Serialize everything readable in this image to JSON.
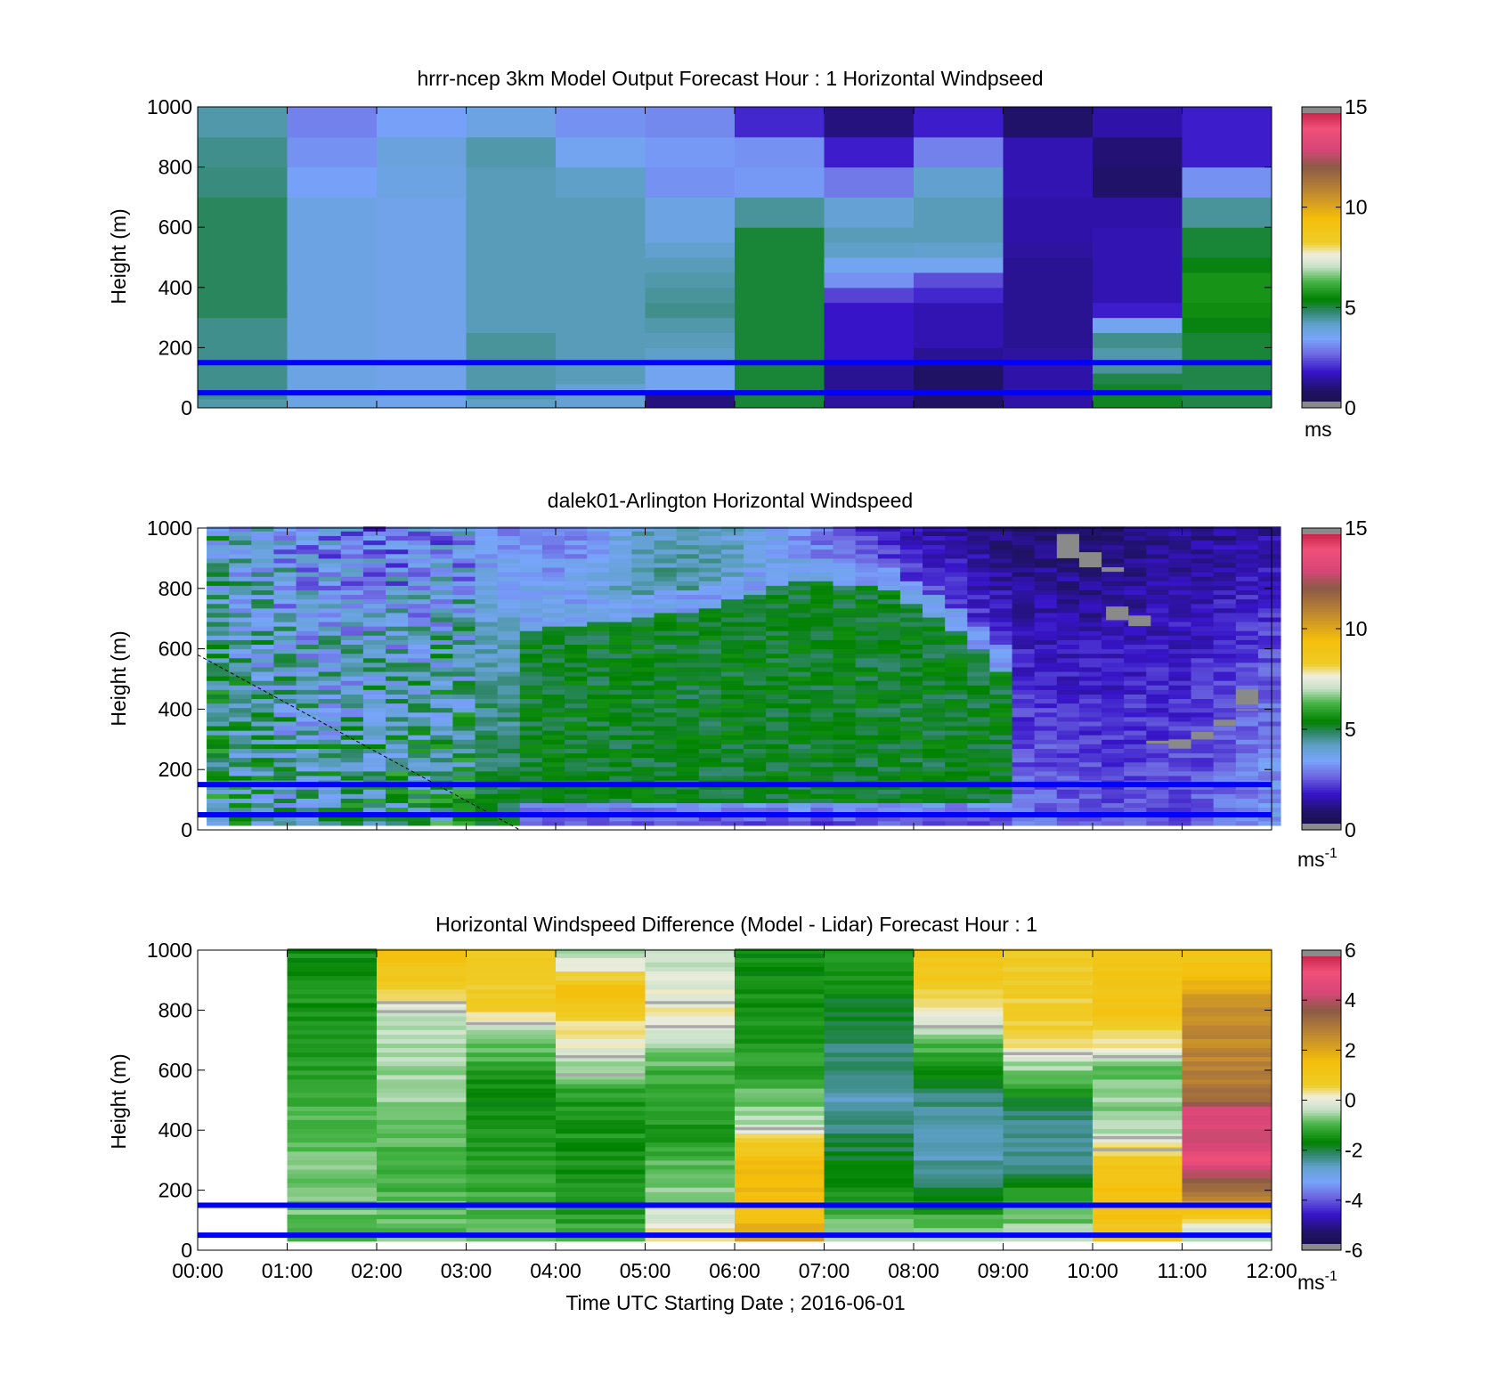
{
  "figure": {
    "x_ticks": [
      "00:00",
      "01:00",
      "02:00",
      "03:00",
      "04:00",
      "05:00",
      "06:00",
      "07:00",
      "08:00",
      "09:00",
      "10:00",
      "11:00",
      "12:00"
    ],
    "x_label": "Time UTC  Starting Date ; 2016-06-01",
    "ref_line_color": "#0000ff",
    "ref_line_heights_m": [
      50,
      150
    ]
  },
  "chart_data": [
    {
      "type": "heatmap",
      "title": "hrrr-ncep 3km Model Output   Forecast Hour : 1 Horizontal Windpseed",
      "ylabel": "Height (m)",
      "xlim_hours": [
        0,
        12
      ],
      "ylim": [
        0,
        1000
      ],
      "y_ticks": [
        "0",
        "200",
        "400",
        "600",
        "800",
        "1000"
      ],
      "colorbar": {
        "range": [
          0,
          15
        ],
        "ticks": [
          "0",
          "5",
          "10",
          "15"
        ],
        "unit": "ms",
        "unit_sup": ""
      },
      "model_levels_m": [
        0,
        30,
        50,
        80,
        115,
        155,
        200,
        250,
        300,
        350,
        400,
        450,
        500,
        550,
        600,
        700,
        800,
        900,
        1000
      ],
      "hours": [
        0,
        1,
        2,
        3,
        4,
        5,
        6,
        7,
        8,
        9,
        10,
        11
      ],
      "values": [
        [
          4.4,
          3.8,
          3.7,
          4.2,
          4.0,
          1.1,
          5.1,
          1.4,
          0.8,
          1.5,
          5.2,
          5.0
        ],
        [
          4.6,
          3.8,
          3.7,
          4.4,
          4.0,
          1.1,
          5.1,
          1.4,
          0.8,
          1.5,
          5.2,
          5.0
        ],
        [
          4.6,
          3.8,
          3.7,
          4.4,
          4.0,
          3.6,
          5.1,
          1.3,
          0.8,
          1.5,
          5.2,
          5.0
        ],
        [
          4.6,
          3.8,
          3.7,
          4.4,
          4.3,
          3.6,
          5.1,
          1.3,
          0.8,
          1.5,
          5.0,
          5.0
        ],
        [
          4.6,
          3.8,
          3.7,
          4.4,
          4.3,
          3.6,
          5.1,
          1.3,
          0.8,
          1.5,
          4.5,
          5.0
        ],
        [
          4.6,
          3.8,
          3.7,
          4.5,
          4.3,
          4.2,
          5.1,
          1.8,
          1.3,
          1.4,
          4.4,
          5.1
        ],
        [
          4.6,
          3.8,
          3.7,
          4.5,
          4.3,
          4.3,
          5.1,
          1.8,
          1.6,
          1.3,
          4.6,
          5.1
        ],
        [
          4.6,
          3.8,
          3.7,
          4.3,
          4.3,
          4.4,
          5.1,
          1.8,
          1.6,
          1.3,
          3.6,
          5.3
        ],
        [
          4.9,
          3.8,
          3.7,
          4.3,
          4.3,
          4.6,
          5.1,
          1.8,
          1.6,
          1.3,
          1.9,
          5.6
        ],
        [
          4.9,
          3.8,
          3.7,
          4.3,
          4.3,
          4.5,
          5.1,
          2.3,
          2.0,
          1.3,
          1.6,
          5.7
        ],
        [
          4.9,
          3.8,
          3.7,
          4.3,
          4.3,
          4.4,
          5.1,
          3.2,
          2.4,
          1.3,
          1.6,
          5.7
        ],
        [
          4.9,
          3.8,
          3.7,
          4.3,
          4.3,
          4.3,
          5.1,
          3.6,
          3.6,
          1.3,
          1.6,
          5.3
        ],
        [
          4.9,
          3.8,
          3.7,
          4.3,
          4.3,
          4.1,
          5.1,
          4.2,
          4.1,
          1.4,
          1.6,
          5.1
        ],
        [
          4.9,
          3.8,
          3.7,
          4.3,
          4.3,
          3.8,
          5.1,
          4.3,
          4.3,
          1.5,
          1.6,
          5.1
        ],
        [
          4.9,
          3.8,
          3.7,
          4.3,
          4.3,
          3.8,
          4.5,
          4.0,
          4.3,
          1.5,
          1.5,
          4.5
        ],
        [
          4.7,
          3.4,
          3.8,
          4.3,
          4.2,
          3.2,
          3.3,
          2.9,
          4.1,
          1.6,
          0.9,
          3.2
        ],
        [
          4.6,
          3.2,
          3.9,
          4.4,
          3.6,
          3.3,
          3.2,
          1.9,
          3.0,
          1.6,
          1.0,
          1.9
        ],
        [
          4.4,
          3.0,
          3.4,
          3.8,
          3.2,
          3.1,
          2.0,
          1.1,
          1.9,
          0.9,
          1.5,
          1.9
        ]
      ]
    },
    {
      "type": "heatmap",
      "title": "dalek01-Arlington  Horizontal Windspeed",
      "ylabel": "Height (m)",
      "xlim_hours": [
        0,
        12
      ],
      "ylim": [
        0,
        1000
      ],
      "y_ticks": [
        "0",
        "200",
        "400",
        "600",
        "800",
        "1000"
      ],
      "colorbar": {
        "range": [
          0,
          15
        ],
        "ticks": [
          "0",
          "5",
          "10",
          "15"
        ],
        "unit": "ms",
        "unit_sup": "-1"
      },
      "lidar_data_hours": [
        0.1,
        11.9
      ],
      "time_step_hours": 0.25,
      "level_step_m": 15,
      "field": [
        {
          "t": 0.0,
          "base": 5.0,
          "top": 4.4
        },
        {
          "t": 1.0,
          "base": 4.3,
          "top": 3.3
        },
        {
          "t": 2.0,
          "base": 5.1,
          "top": 2.6
        },
        {
          "t": 3.0,
          "base": 5.3,
          "top": 3.2
        },
        {
          "t": 4.0,
          "base": 5.1,
          "top": 2.8
        },
        {
          "t": 5.0,
          "base": 5.1,
          "top": 4.3
        },
        {
          "t": 6.0,
          "base": 5.0,
          "top": 3.9
        },
        {
          "t": 7.0,
          "base": 5.4,
          "top": 2.5
        },
        {
          "t": 8.0,
          "base": 5.1,
          "top": 1.4
        },
        {
          "t": 9.0,
          "base": 2.8,
          "top": 0.9
        },
        {
          "t": 10.0,
          "base": 2.5,
          "top": 0.8
        },
        {
          "t": 11.0,
          "base": 2.5,
          "top": 1.3
        },
        {
          "t": 12.0,
          "base": 3.5,
          "top": 1.4
        }
      ],
      "jet_core_top_m": [
        {
          "t": 3.5,
          "h": 650
        },
        {
          "t": 5.5,
          "h": 720
        },
        {
          "t": 6.5,
          "h": 820
        },
        {
          "t": 7.5,
          "h": 800
        },
        {
          "t": 8.5,
          "h": 620
        },
        {
          "t": 9.0,
          "h": 480
        }
      ],
      "missing_patches": [
        {
          "t0": 9.6,
          "t1": 9.85,
          "h0": 900,
          "h1": 980
        },
        {
          "t0": 9.85,
          "t1": 10.1,
          "h0": 870,
          "h1": 920
        },
        {
          "t0": 10.1,
          "t1": 10.35,
          "h0": 855,
          "h1": 870
        },
        {
          "t0": 10.15,
          "t1": 10.4,
          "h0": 695,
          "h1": 740
        },
        {
          "t0": 10.4,
          "t1": 10.65,
          "h0": 675,
          "h1": 710
        },
        {
          "t0": 10.6,
          "t1": 10.85,
          "h0": 285,
          "h1": 295
        },
        {
          "t0": 10.85,
          "t1": 11.1,
          "h0": 270,
          "h1": 300
        },
        {
          "t0": 11.1,
          "t1": 11.35,
          "h0": 300,
          "h1": 325
        },
        {
          "t0": 11.35,
          "t1": 11.6,
          "h0": 345,
          "h1": 365
        },
        {
          "t0": 11.6,
          "t1": 11.85,
          "h0": 415,
          "h1": 465
        },
        {
          "t0": 11.6,
          "t1": 11.85,
          "h0": 395,
          "h1": 400
        }
      ],
      "dashed_line": {
        "t0": 0.0,
        "h0": 580,
        "t1": 3.6,
        "h1": 0
      }
    },
    {
      "type": "heatmap",
      "title": "Horizontal Windspeed Difference (Model - Lidar) Forecast Hour : 1",
      "ylabel": "Height (m)",
      "xlim_hours": [
        0,
        12
      ],
      "ylim": [
        0,
        1000
      ],
      "y_ticks": [
        "0",
        "200",
        "400",
        "600",
        "800",
        "1000"
      ],
      "colorbar": {
        "range": [
          -6,
          6
        ],
        "ticks": [
          "-6",
          "-4",
          "-2",
          "0",
          "2",
          "4",
          "6"
        ],
        "unit": "ms",
        "unit_sup": "-1"
      },
      "hours": [
        1,
        2,
        3,
        4,
        5,
        6,
        7,
        8,
        9,
        10,
        11
      ],
      "level_step_m": 15,
      "level_range_m": [
        30,
        1000
      ],
      "profiles": [
        [
          {
            "h": 30,
            "v": -0.8
          },
          {
            "h": 300,
            "v": -0.8
          },
          {
            "h": 600,
            "v": -1.3
          },
          {
            "h": 1000,
            "v": -1.5
          }
        ],
        [
          {
            "h": 30,
            "v": -0.8
          },
          {
            "h": 300,
            "v": -1.0
          },
          {
            "h": 600,
            "v": -0.5
          },
          {
            "h": 800,
            "v": -0.2
          },
          {
            "h": 850,
            "v": 0.7
          },
          {
            "h": 1000,
            "v": 1.4
          }
        ],
        [
          {
            "h": 30,
            "v": -0.6
          },
          {
            "h": 200,
            "v": -1.2
          },
          {
            "h": 500,
            "v": -1.6
          },
          {
            "h": 650,
            "v": -1.0
          },
          {
            "h": 750,
            "v": -0.2
          },
          {
            "h": 800,
            "v": 0.7
          },
          {
            "h": 1000,
            "v": 0.8
          }
        ],
        [
          {
            "h": 30,
            "v": -1.0
          },
          {
            "h": 200,
            "v": -1.5
          },
          {
            "h": 500,
            "v": -1.4
          },
          {
            "h": 650,
            "v": -0.2
          },
          {
            "h": 750,
            "v": 0.5
          },
          {
            "h": 850,
            "v": 1.5
          },
          {
            "h": 950,
            "v": 0.0
          },
          {
            "h": 1000,
            "v": -0.6
          }
        ],
        [
          {
            "h": 30,
            "v": 0.4
          },
          {
            "h": 150,
            "v": -0.5
          },
          {
            "h": 400,
            "v": -1.4
          },
          {
            "h": 600,
            "v": -1.0
          },
          {
            "h": 700,
            "v": -0.3
          },
          {
            "h": 800,
            "v": 0.2
          },
          {
            "h": 1000,
            "v": -0.4
          }
        ],
        [
          {
            "h": 30,
            "v": 2.2
          },
          {
            "h": 100,
            "v": 1.4
          },
          {
            "h": 250,
            "v": 1.6
          },
          {
            "h": 350,
            "v": 1.0
          },
          {
            "h": 420,
            "v": -0.4
          },
          {
            "h": 600,
            "v": -1.3
          },
          {
            "h": 1000,
            "v": -1.6
          }
        ],
        [
          {
            "h": 30,
            "v": -0.5
          },
          {
            "h": 150,
            "v": -1.3
          },
          {
            "h": 350,
            "v": -2.0
          },
          {
            "h": 500,
            "v": -2.5
          },
          {
            "h": 700,
            "v": -2.1
          },
          {
            "h": 1000,
            "v": -1.2
          }
        ],
        [
          {
            "h": 30,
            "v": -0.3
          },
          {
            "h": 150,
            "v": -1.6
          },
          {
            "h": 300,
            "v": -2.5
          },
          {
            "h": 500,
            "v": -2.3
          },
          {
            "h": 700,
            "v": -0.8
          },
          {
            "h": 800,
            "v": 0.4
          },
          {
            "h": 900,
            "v": 0.9
          },
          {
            "h": 1000,
            "v": 1.1
          }
        ],
        [
          {
            "h": 30,
            "v": -0.3
          },
          {
            "h": 150,
            "v": -1.1
          },
          {
            "h": 300,
            "v": -2.4
          },
          {
            "h": 450,
            "v": -2.2
          },
          {
            "h": 600,
            "v": -0.6
          },
          {
            "h": 700,
            "v": 0.5
          },
          {
            "h": 900,
            "v": 0.8
          },
          {
            "h": 1000,
            "v": 0.6
          }
        ],
        [
          {
            "h": 30,
            "v": 1.0
          },
          {
            "h": 200,
            "v": 1.5
          },
          {
            "h": 300,
            "v": 0.8
          },
          {
            "h": 400,
            "v": -0.5
          },
          {
            "h": 600,
            "v": -0.8
          },
          {
            "h": 700,
            "v": 0.5
          },
          {
            "h": 800,
            "v": 1.2
          },
          {
            "h": 1000,
            "v": 1.0
          }
        ],
        [
          {
            "h": 30,
            "v": -0.7
          },
          {
            "h": 100,
            "v": 0.6
          },
          {
            "h": 180,
            "v": 3.0
          },
          {
            "h": 260,
            "v": 4.3
          },
          {
            "h": 300,
            "v": 5.0
          },
          {
            "h": 350,
            "v": 4.4
          },
          {
            "h": 450,
            "v": 4.6
          },
          {
            "h": 500,
            "v": 3.2
          },
          {
            "h": 600,
            "v": 2.7
          },
          {
            "h": 800,
            "v": 2.5
          },
          {
            "h": 900,
            "v": 1.5
          },
          {
            "h": 1000,
            "v": 1.1
          }
        ]
      ],
      "missing_strips": [
        {
          "hour": 2,
          "h": [
            820,
            790
          ]
        },
        {
          "hour": 3,
          "h": [
            750
          ]
        },
        {
          "hour": 4,
          "h": [
            640,
            580
          ]
        },
        {
          "hour": 5,
          "h": [
            820,
            740
          ]
        },
        {
          "hour": 6,
          "h": [
            400
          ]
        },
        {
          "hour": 8,
          "h": [
            740
          ]
        },
        {
          "hour": 9,
          "h": [
            650
          ]
        },
        {
          "hour": 10,
          "h": [
            640,
            370,
            330
          ]
        }
      ]
    }
  ]
}
